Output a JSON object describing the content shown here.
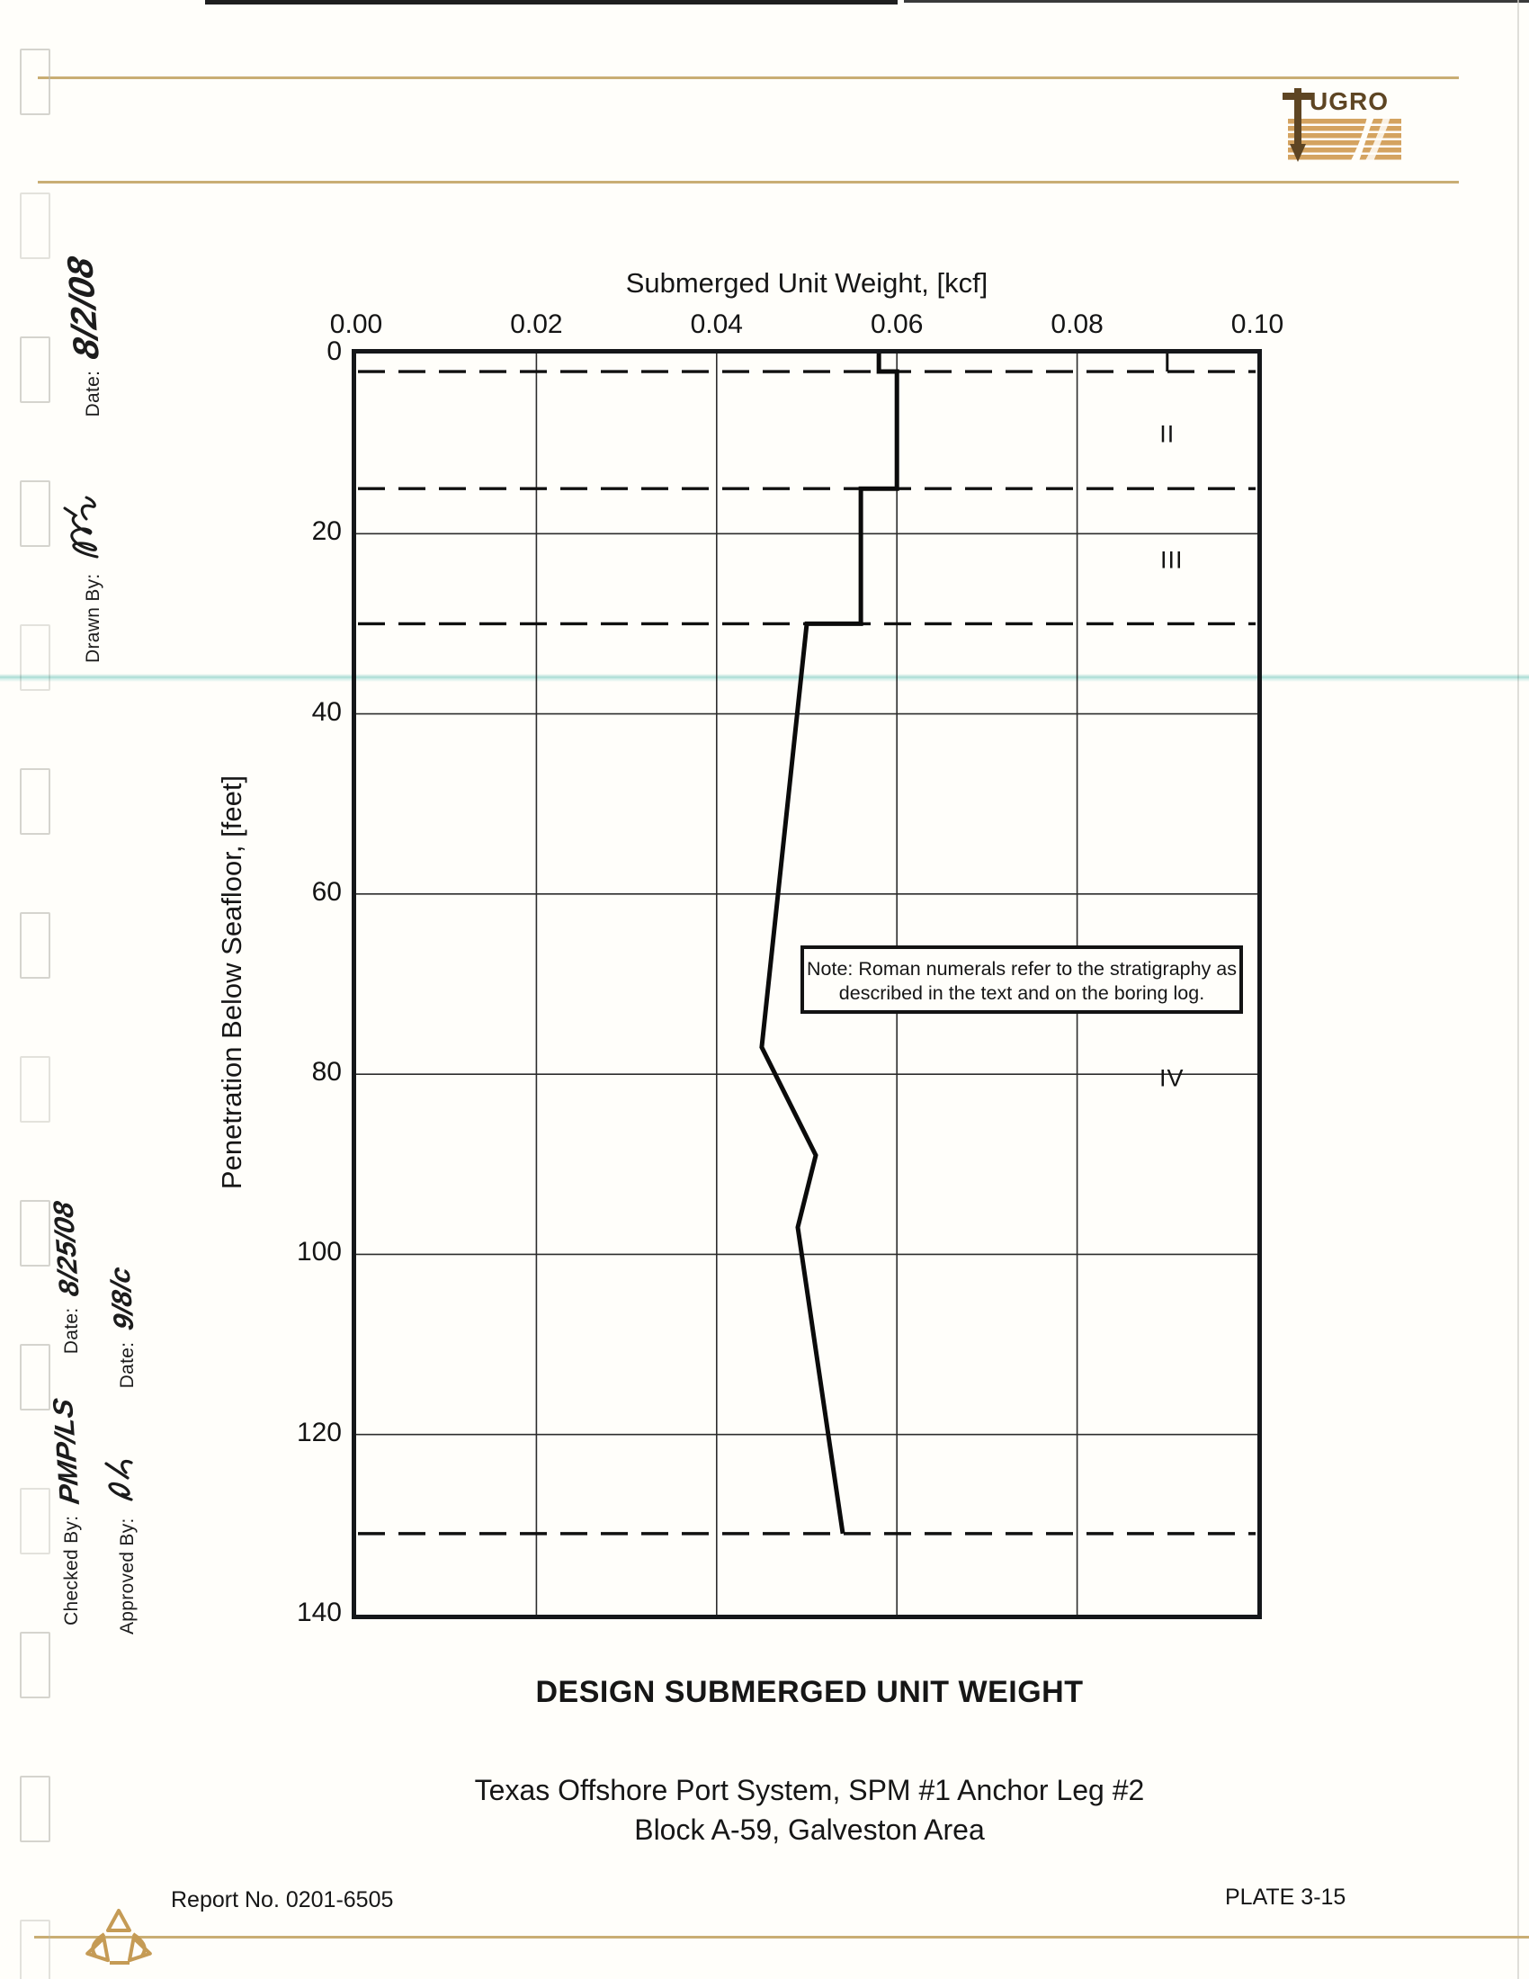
{
  "page": {
    "footer_left": "Report No. 0201-6505",
    "footer_right": "PLATE 3-15"
  },
  "logo": {
    "brand": "fUGRO"
  },
  "title_block": {
    "drawn_by_label": "Drawn By:",
    "drawn_date_label": "Date:",
    "drawn_date_value": "8/2/08",
    "checked_by_label": "Checked By:",
    "checked_by_value": "PMP/LS",
    "checked_date_label": "Date:",
    "checked_date_value": "8/25/08",
    "approved_by_label": "Approved By:",
    "approved_date_label": "Date:",
    "approved_date_value": "9/8/c"
  },
  "captions": {
    "main_title": "DESIGN SUBMERGED UNIT WEIGHT",
    "subtitle_line1": "Texas Offshore Port System, SPM #1 Anchor Leg #2",
    "subtitle_line2": "Block A-59, Galveston Area"
  },
  "chart_data": {
    "type": "line",
    "title": "Submerged Unit Weight, [kcf]",
    "xlabel": "Submerged Unit Weight, [kcf]",
    "ylabel": "Penetration Below Seafloor, [feet]",
    "x_axis_position": "top",
    "grid": true,
    "xlim": [
      0,
      0.1
    ],
    "ylim": [
      0,
      140
    ],
    "xticks": [
      "0.00",
      "0.02",
      "0.04",
      "0.06",
      "0.08",
      "0.10"
    ],
    "yticks": [
      "0",
      "20",
      "40",
      "60",
      "80",
      "100",
      "120",
      "140"
    ],
    "series": [
      {
        "name": "Design submerged unit weight profile",
        "points_w_kcf_depth_ft": [
          [
            0.058,
            0
          ],
          [
            0.058,
            2
          ],
          [
            0.06,
            2
          ],
          [
            0.06,
            15
          ],
          [
            0.056,
            15
          ],
          [
            0.056,
            30
          ],
          [
            0.05,
            30
          ],
          [
            0.045,
            77
          ],
          [
            0.051,
            89
          ],
          [
            0.049,
            97
          ],
          [
            0.054,
            131
          ]
        ]
      }
    ],
    "stratum_boundaries_depth_ft": [
      2,
      15,
      30,
      131
    ],
    "minor_tick_w_kcf": 0.09,
    "strata_labels": [
      {
        "label": "II",
        "w_kcf": 0.09,
        "depth_ft": 9
      },
      {
        "label": "III",
        "w_kcf": 0.0905,
        "depth_ft": 23
      },
      {
        "label": "IV",
        "w_kcf": 0.0905,
        "depth_ft": 80.5
      }
    ],
    "note_line1": "Note:  Roman numerals refer to the stratigraphy as",
    "note_line2": "described in the text and on the boring log."
  },
  "colors": {
    "gold_rule": "#c9ae74",
    "logo_tan": "#d4a360",
    "logo_brown": "#5e4523",
    "ink": "#161616",
    "cyan_artifact": "#aadedd"
  }
}
